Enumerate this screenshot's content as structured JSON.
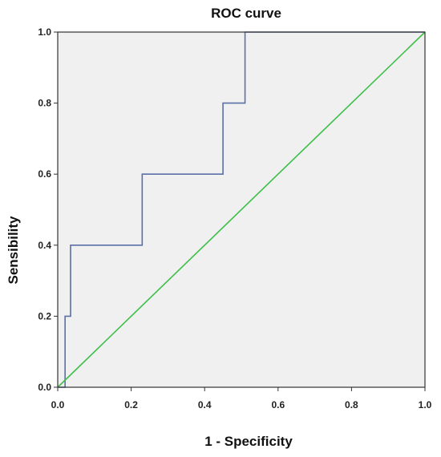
{
  "chart_data": {
    "type": "line",
    "title": "ROC curve",
    "xlabel": "1 - Specificity",
    "ylabel": "Sensibility",
    "xlim": [
      0,
      1
    ],
    "ylim": [
      0,
      1
    ],
    "xticks": [
      "0.0",
      "0.2",
      "0.4",
      "0.6",
      "0.8",
      "1.0"
    ],
    "yticks": [
      "0.0",
      "0.2",
      "0.4",
      "0.6",
      "0.8",
      "1.0"
    ],
    "grid": false,
    "background_color": "#f0f0f0",
    "series": [
      {
        "color": "#5b6fa8",
        "x": [
          0.0,
          0.02,
          0.02,
          0.035,
          0.035,
          0.22,
          0.22,
          0.23,
          0.23,
          0.435,
          0.435,
          0.45,
          0.45,
          0.495,
          0.495,
          0.51,
          0.51,
          1.0
        ],
        "y": [
          0.0,
          0.0,
          0.2,
          0.2,
          0.4,
          0.4,
          0.4,
          0.4,
          0.6,
          0.6,
          0.6,
          0.6,
          0.8,
          0.8,
          0.8,
          0.8,
          1.0,
          1.0
        ]
      },
      {
        "color": "#3dbf4a",
        "x": [
          0.0,
          1.0
        ],
        "y": [
          0.0,
          1.0
        ]
      }
    ]
  }
}
